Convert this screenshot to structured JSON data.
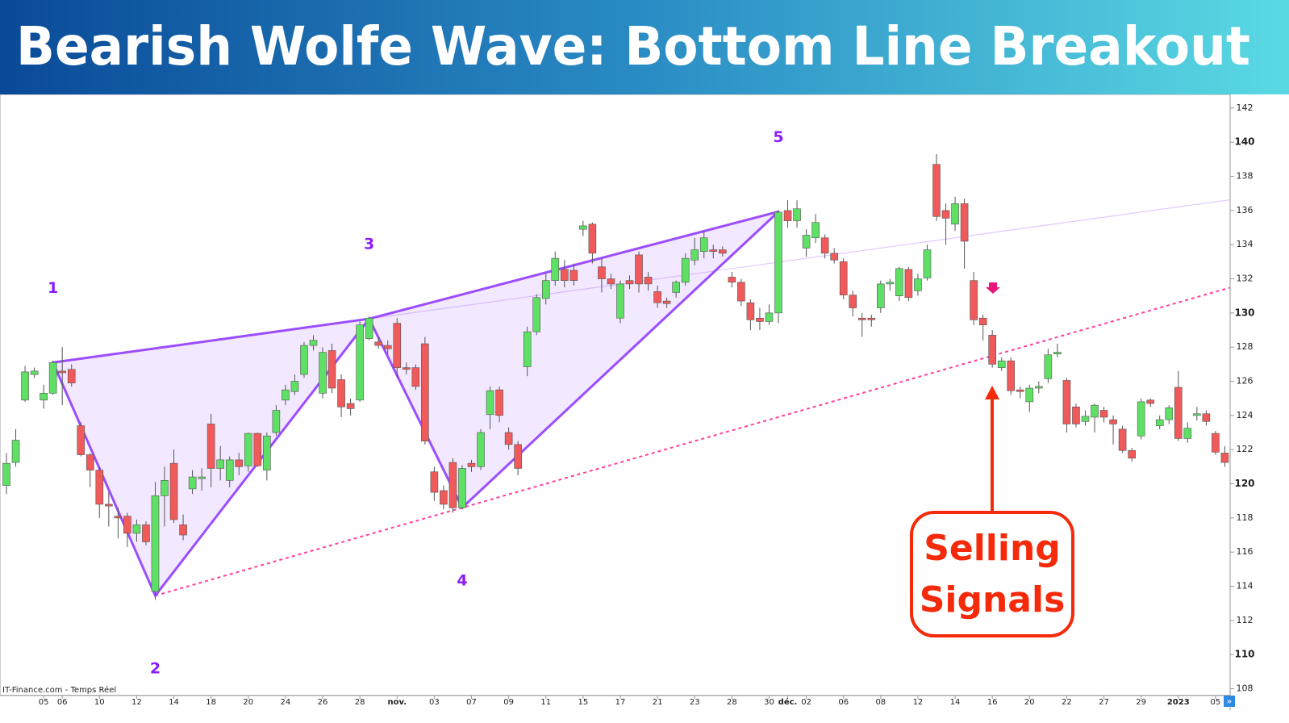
{
  "chart_data": {
    "type": "candlestick",
    "title": "Bearish Wolfe Wave: Bottom Line Breakout",
    "source": "IT-Finance.com - Temps Réel",
    "annotation_lines": [
      "Selling",
      "Signals"
    ],
    "up_color": "#5ee065",
    "down_color": "#f05a5a",
    "ylim": [
      107.6,
      142.75
    ],
    "yticks": [
      108,
      110,
      112,
      114,
      116,
      118,
      120,
      122,
      124,
      126,
      128,
      130,
      132,
      134,
      136,
      138,
      140,
      142
    ],
    "categories": [
      null,
      null,
      null,
      null,
      "05",
      null,
      "06",
      null,
      null,
      null,
      "10",
      null,
      null,
      null,
      "12",
      null,
      null,
      null,
      "14",
      null,
      null,
      null,
      "18",
      null,
      null,
      null,
      "20",
      null,
      null,
      null,
      "24",
      null,
      null,
      null,
      "26",
      null,
      null,
      null,
      "28",
      null,
      null,
      null,
      "nov.",
      null,
      null,
      null,
      "03",
      null,
      null,
      null,
      "07",
      null,
      null,
      null,
      "09",
      null,
      null,
      null,
      "11",
      null,
      null,
      null,
      "15",
      null,
      null,
      null,
      "17",
      null,
      null,
      null,
      "21",
      null,
      null,
      null,
      "23",
      null,
      null,
      null,
      "28",
      null,
      null,
      null,
      "30",
      null,
      "déc.",
      null,
      "02",
      null,
      null,
      null,
      "06",
      null,
      null,
      null,
      "08",
      null,
      null,
      null,
      "12",
      null,
      null,
      null,
      "14",
      null,
      null,
      null,
      "16",
      null,
      null,
      null,
      "20",
      null,
      null,
      null,
      "22",
      null,
      null,
      null,
      "27",
      null,
      null,
      null,
      "29",
      null,
      null,
      null,
      "2023",
      null,
      null,
      null,
      "05",
      null
    ],
    "candles": [
      [
        119.9,
        121.8,
        119.4,
        121.2
      ],
      [
        121.25,
        123.2,
        121.0,
        122.55
      ],
      [
        124.9,
        126.9,
        124.8,
        126.55
      ],
      [
        126.4,
        126.8,
        126.2,
        126.6
      ],
      [
        124.9,
        125.8,
        124.4,
        125.3
      ],
      [
        125.3,
        127.2,
        125.2,
        127.1
      ],
      [
        126.6,
        128.0,
        124.6,
        126.5
      ],
      [
        126.7,
        127.0,
        125.7,
        125.9
      ],
      [
        123.4,
        123.6,
        121.6,
        121.7
      ],
      [
        121.7,
        121.8,
        119.8,
        120.8
      ],
      [
        120.8,
        121.0,
        118.0,
        118.8
      ],
      [
        118.8,
        119.5,
        117.5,
        118.7
      ],
      [
        118.1,
        118.6,
        116.8,
        118.0
      ],
      [
        118.1,
        118.3,
        116.3,
        117.1
      ],
      [
        117.1,
        117.9,
        116.6,
        117.6
      ],
      [
        117.6,
        117.8,
        116.4,
        116.6
      ],
      [
        113.7,
        120.1,
        113.2,
        119.3
      ],
      [
        119.3,
        121.0,
        117.5,
        120.2
      ],
      [
        121.2,
        122.0,
        117.7,
        117.9
      ],
      [
        117.6,
        118.2,
        116.7,
        117.0
      ],
      [
        119.7,
        120.8,
        119.4,
        120.4
      ],
      [
        120.3,
        120.9,
        119.6,
        120.4
      ],
      [
        123.5,
        124.1,
        119.8,
        120.9
      ],
      [
        120.9,
        122.2,
        120.2,
        121.4
      ],
      [
        120.2,
        121.6,
        119.8,
        121.4
      ],
      [
        121.4,
        121.8,
        120.5,
        121.0
      ],
      [
        121.05,
        123.0,
        120.7,
        122.95
      ],
      [
        122.95,
        123.0,
        121.0,
        121.05
      ],
      [
        120.8,
        123.0,
        120.2,
        122.8
      ],
      [
        123.0,
        124.6,
        122.8,
        124.3
      ],
      [
        124.9,
        125.8,
        124.6,
        125.5
      ],
      [
        125.4,
        126.4,
        125.2,
        126.0
      ],
      [
        126.4,
        128.3,
        126.2,
        128.1
      ],
      [
        128.1,
        128.7,
        127.8,
        128.4
      ],
      [
        125.3,
        128.0,
        125.0,
        127.7
      ],
      [
        127.8,
        128.2,
        125.3,
        125.6
      ],
      [
        126.1,
        126.4,
        123.9,
        124.5
      ],
      [
        124.7,
        125.0,
        124.0,
        124.4
      ],
      [
        124.9,
        129.5,
        124.8,
        129.3
      ],
      [
        128.5,
        129.8,
        128.4,
        129.7
      ],
      [
        128.3,
        128.6,
        127.9,
        128.1
      ],
      [
        128.1,
        128.4,
        127.6,
        127.9
      ],
      [
        129.4,
        129.7,
        126.2,
        126.8
      ],
      [
        126.8,
        127.1,
        126.4,
        126.7
      ],
      [
        126.8,
        127.0,
        125.5,
        125.7
      ],
      [
        128.2,
        128.6,
        122.3,
        122.5
      ],
      [
        120.7,
        121.0,
        119.0,
        119.5
      ],
      [
        119.6,
        119.9,
        118.5,
        118.8
      ],
      [
        121.25,
        121.5,
        118.3,
        118.6
      ],
      [
        118.6,
        121.1,
        118.5,
        120.9
      ],
      [
        121.2,
        121.4,
        120.7,
        121.0
      ],
      [
        121.0,
        123.2,
        120.8,
        123.0
      ],
      [
        124.05,
        125.7,
        123.2,
        125.45
      ],
      [
        125.5,
        125.7,
        123.6,
        124.0
      ],
      [
        123.0,
        123.3,
        122.0,
        122.3
      ],
      [
        122.3,
        122.5,
        120.5,
        120.9
      ],
      [
        126.85,
        129.2,
        126.3,
        128.9
      ],
      [
        128.9,
        131.1,
        128.7,
        130.9
      ],
      [
        130.85,
        132.3,
        130.5,
        131.9
      ],
      [
        131.9,
        133.6,
        131.6,
        133.2
      ],
      [
        132.55,
        133.1,
        131.5,
        131.9
      ],
      [
        132.5,
        132.9,
        131.6,
        131.9
      ],
      [
        134.9,
        135.4,
        134.5,
        135.1
      ],
      [
        135.2,
        135.3,
        132.9,
        133.5
      ],
      [
        132.7,
        133.2,
        131.2,
        132.0
      ],
      [
        132.0,
        132.3,
        131.4,
        131.7
      ],
      [
        129.7,
        131.9,
        129.4,
        131.7
      ],
      [
        131.9,
        132.2,
        131.4,
        131.7
      ],
      [
        133.4,
        133.6,
        131.2,
        131.7
      ],
      [
        132.1,
        132.4,
        131.3,
        131.7
      ],
      [
        131.25,
        131.6,
        130.3,
        130.6
      ],
      [
        130.7,
        130.9,
        130.3,
        130.55
      ],
      [
        131.2,
        131.9,
        130.9,
        131.8
      ],
      [
        131.8,
        133.5,
        131.6,
        133.2
      ],
      [
        133.1,
        134.4,
        132.8,
        133.7
      ],
      [
        133.6,
        134.8,
        133.2,
        134.4
      ],
      [
        133.7,
        134.0,
        133.2,
        133.6
      ],
      [
        133.7,
        133.9,
        133.3,
        133.5
      ],
      [
        132.1,
        132.4,
        131.5,
        131.8
      ],
      [
        131.8,
        132.0,
        130.4,
        130.7
      ],
      [
        130.6,
        130.8,
        129.0,
        129.6
      ],
      [
        129.7,
        130.3,
        129.0,
        129.5
      ],
      [
        129.5,
        130.5,
        129.3,
        130.0
      ],
      [
        130.0,
        136.0,
        129.4,
        135.9
      ],
      [
        136.0,
        136.6,
        135.0,
        135.4
      ],
      [
        135.4,
        136.6,
        135.0,
        136.1
      ],
      [
        133.8,
        134.9,
        133.3,
        134.55
      ],
      [
        134.4,
        135.8,
        134.1,
        135.3
      ],
      [
        134.4,
        134.6,
        133.2,
        133.5
      ],
      [
        133.5,
        133.8,
        132.9,
        133.1
      ],
      [
        133.0,
        133.2,
        130.8,
        131.05
      ],
      [
        131.05,
        131.3,
        129.8,
        130.3
      ],
      [
        129.7,
        130.0,
        128.6,
        129.6
      ],
      [
        129.7,
        129.9,
        129.2,
        129.6
      ],
      [
        130.3,
        131.9,
        130.0,
        131.7
      ],
      [
        131.7,
        132.0,
        131.3,
        131.8
      ],
      [
        131.0,
        132.7,
        130.7,
        132.6
      ],
      [
        132.55,
        132.7,
        130.7,
        130.9
      ],
      [
        131.3,
        132.3,
        131.0,
        132.0
      ],
      [
        132.05,
        134.0,
        131.9,
        133.7
      ],
      [
        138.7,
        139.3,
        135.4,
        135.65
      ],
      [
        136.0,
        136.4,
        134.0,
        135.55
      ],
      [
        135.2,
        136.8,
        134.8,
        136.4
      ],
      [
        136.4,
        136.7,
        132.6,
        134.2
      ],
      [
        131.9,
        132.4,
        129.3,
        129.6
      ],
      [
        129.7,
        129.9,
        128.4,
        129.3
      ],
      [
        128.7,
        129.0,
        126.8,
        127.0
      ],
      [
        126.8,
        127.4,
        126.6,
        127.2
      ],
      [
        127.2,
        127.4,
        125.2,
        125.45
      ],
      [
        125.5,
        125.7,
        125.0,
        125.4
      ],
      [
        124.8,
        125.8,
        124.2,
        125.6
      ],
      [
        125.6,
        126.0,
        125.3,
        125.7
      ],
      [
        126.15,
        127.9,
        125.9,
        127.55
      ],
      [
        127.6,
        128.2,
        127.4,
        127.7
      ],
      [
        126.05,
        126.2,
        123.0,
        123.5
      ],
      [
        124.5,
        124.7,
        123.3,
        123.5
      ],
      [
        123.65,
        124.3,
        123.4,
        123.95
      ],
      [
        123.9,
        124.7,
        123.0,
        124.6
      ],
      [
        124.3,
        124.5,
        123.6,
        123.9
      ],
      [
        123.75,
        124.0,
        122.3,
        123.5
      ],
      [
        123.2,
        123.4,
        121.8,
        121.95
      ],
      [
        121.95,
        122.1,
        121.3,
        121.5
      ],
      [
        122.8,
        125.0,
        122.6,
        124.8
      ],
      [
        124.9,
        125.0,
        124.5,
        124.7
      ],
      [
        123.4,
        124.0,
        123.2,
        123.75
      ],
      [
        123.75,
        124.6,
        123.5,
        124.45
      ],
      [
        125.65,
        126.6,
        122.5,
        122.65
      ],
      [
        122.65,
        123.6,
        122.4,
        123.25
      ],
      [
        124.0,
        124.5,
        123.7,
        124.1
      ],
      [
        124.1,
        124.3,
        123.4,
        123.65
      ],
      [
        122.95,
        123.1,
        121.7,
        121.85
      ],
      [
        121.8,
        122.2,
        121.0,
        121.25
      ]
    ],
    "wolfe_points": [
      {
        "label": "1",
        "candle": 5,
        "price": 127.1
      },
      {
        "label": "2",
        "candle": 16,
        "price": 113.45
      },
      {
        "label": "3",
        "candle": 39,
        "price": 129.66
      },
      {
        "label": "4",
        "candle": 49,
        "price": 118.6
      },
      {
        "label": "5",
        "candle": 83,
        "price": 135.93
      }
    ],
    "wolfe_color": "#9b4dff",
    "target_line_color": "#ff3fa0"
  }
}
